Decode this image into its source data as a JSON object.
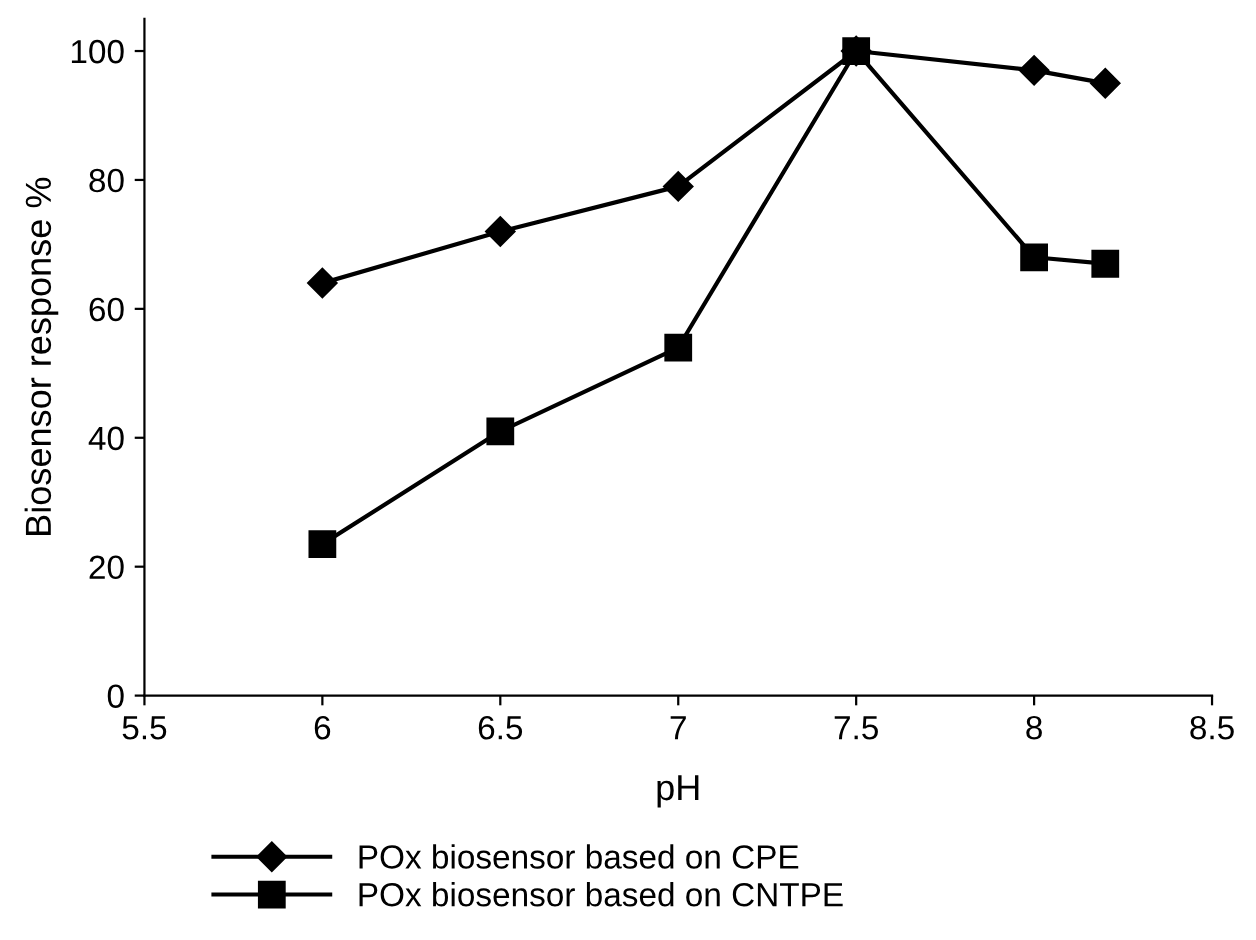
{
  "chart_data": {
    "type": "line",
    "xlabel": "pH",
    "ylabel": "Biosensor response %",
    "x": [
      6,
      6.5,
      7,
      7.5,
      8,
      8.2
    ],
    "series": [
      {
        "name": "POx biosensor based on CPE",
        "color": "#000000",
        "marker": "diamond",
        "values": [
          64,
          72,
          79,
          100,
          97,
          95
        ]
      },
      {
        "name": "POx biosensor based on CNTPE",
        "color": "#000000",
        "marker": "square",
        "values": [
          23.5,
          41,
          54,
          100,
          68,
          67
        ]
      }
    ],
    "xlim": [
      5.5,
      8.5
    ],
    "xticks": [
      5.5,
      6,
      6.5,
      7,
      7.5,
      8,
      8.5
    ],
    "ylim": [
      0,
      105
    ],
    "yticks": [
      0,
      20,
      40,
      60,
      80,
      100
    ],
    "grid": false,
    "legend": "bottom",
    "line_style": "solid"
  }
}
